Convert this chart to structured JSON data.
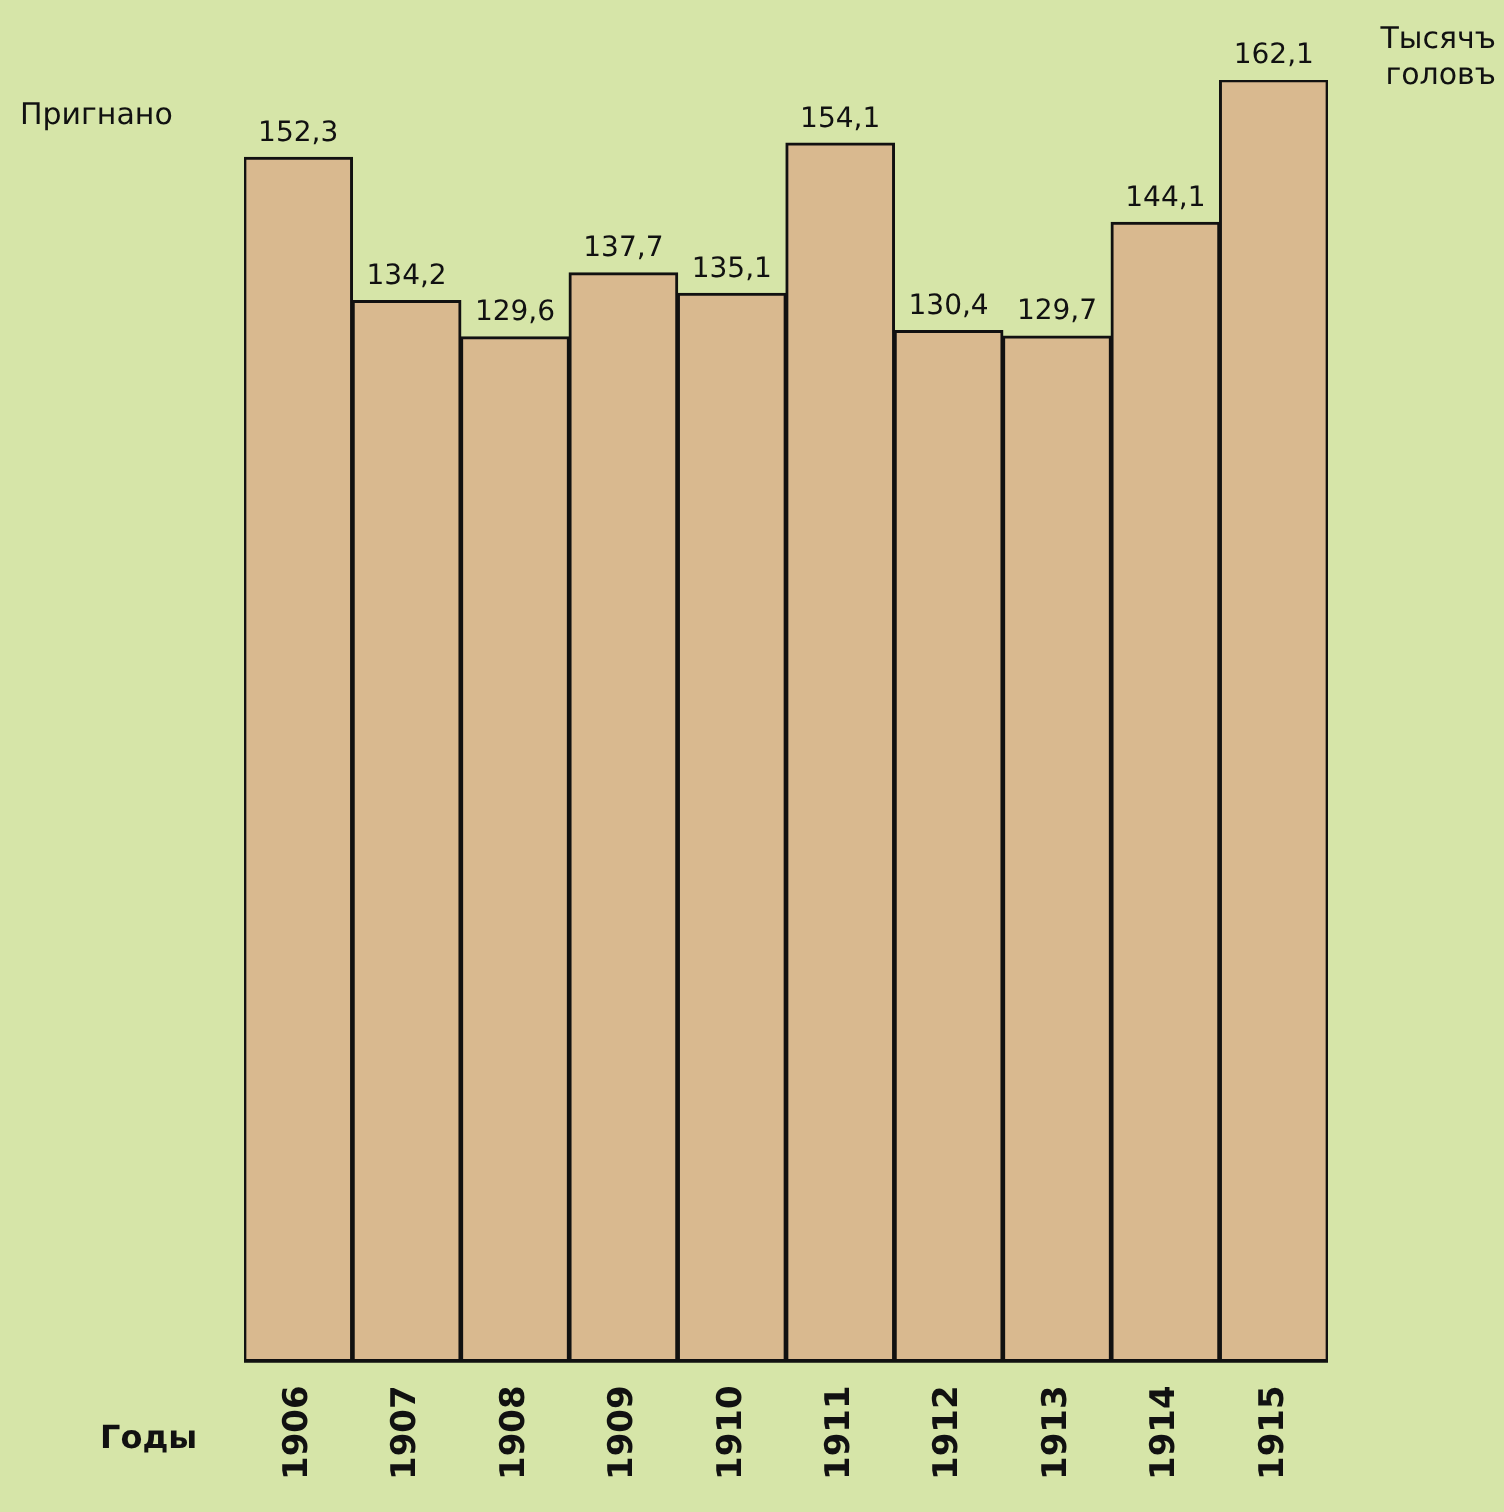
{
  "chart_data": {
    "type": "bar",
    "ylabel": "Пригнано",
    "xlabel": "Годы",
    "annotations": [
      "Тысячъ головъ"
    ],
    "categories": [
      "1906",
      "1907",
      "1908",
      "1909",
      "1910",
      "1911",
      "1912",
      "1913",
      "1914",
      "1915"
    ],
    "values": [
      152.3,
      134.2,
      129.6,
      137.7,
      135.1,
      154.1,
      130.4,
      129.7,
      144.1,
      162.1
    ],
    "value_labels": [
      "152,3",
      "134,2",
      "129,6",
      "137,7",
      "135,1",
      "154,1",
      "130,4",
      "129,7",
      "144,1",
      "162,1"
    ],
    "color": "#d9b98f",
    "ylim": [
      0,
      162.1
    ],
    "tick_labels": "x",
    "grid": false,
    "legend": false
  }
}
